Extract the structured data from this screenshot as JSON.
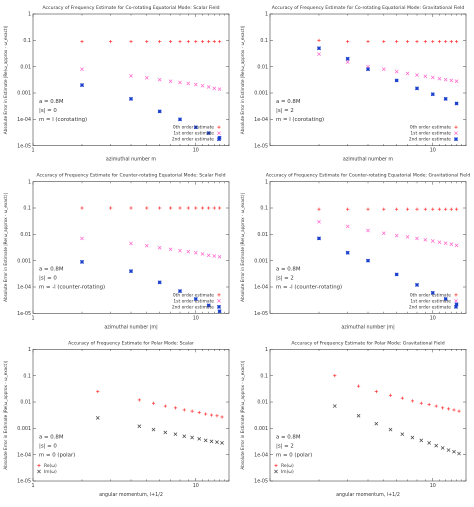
{
  "chart_data": [
    {
      "type": "scatter",
      "title": "Accuracy of Frequency Estimate for Co-rotating Equatorial Mode: Scalar Field",
      "xlabel": "azimuthal number m",
      "ylabel": "Absolute Error in Estimate |Re(ω_approx - ω_exact)|",
      "xscale": "log",
      "yscale": "log",
      "xlim": [
        1,
        16
      ],
      "ylim": [
        1e-05,
        1
      ],
      "xticks": [
        1,
        10
      ],
      "yticks": [
        1e-05,
        0.0001,
        0.001,
        0.01,
        0.1,
        1
      ],
      "params": [
        "a = 0.8M",
        "|s| = 0",
        "m = l (corotating)"
      ],
      "legend_position": "bottom-right",
      "series": [
        {
          "name": "0th order estimate",
          "color": "#ff3333",
          "marker": "plus",
          "x": [
            2,
            3,
            4,
            5,
            6,
            7,
            8,
            9,
            10,
            11,
            12,
            13,
            14
          ],
          "y": [
            0.09,
            0.09,
            0.09,
            0.09,
            0.09,
            0.09,
            0.09,
            0.09,
            0.09,
            0.09,
            0.09,
            0.09,
            0.09
          ]
        },
        {
          "name": "1st order estimate",
          "color": "#ff66cc",
          "marker": "cross",
          "x": [
            2,
            4,
            5,
            6,
            7,
            8,
            9,
            10,
            11,
            12,
            13,
            14
          ],
          "y": [
            0.008,
            0.0045,
            0.0038,
            0.0032,
            0.0028,
            0.0025,
            0.0023,
            0.0021,
            0.0019,
            0.0017,
            0.0015,
            0.0014
          ]
        },
        {
          "name": "2nd order estimate",
          "color": "#1a3fcc",
          "marker": "star",
          "x": [
            2,
            4,
            6,
            8,
            10,
            12,
            14
          ],
          "y": [
            0.002,
            0.0006,
            0.0002,
            0.0001,
            5e-05,
            3e-05,
            2e-05
          ]
        }
      ]
    },
    {
      "type": "scatter",
      "title": "Accuracy of Frequency Estimate for Co-rotating Equatorial Mode: Gravitational Field",
      "xlabel": "azimuthal number m",
      "ylabel": "Absolute Error in Estimate |Re(ω_approx - ω_exact)|",
      "xscale": "log",
      "yscale": "log",
      "xlim": [
        1,
        16
      ],
      "ylim": [
        1e-05,
        1
      ],
      "xticks": [
        10
      ],
      "yticks": [
        1e-05,
        0.0001,
        0.001,
        0.01,
        0.1,
        1
      ],
      "params": [
        "a = 0.8M",
        "|s| = 2",
        "m = l (corotating)"
      ],
      "legend_position": "bottom-right",
      "series": [
        {
          "name": "0th order estimate",
          "color": "#ff3333",
          "marker": "plus",
          "x": [
            2,
            3,
            4,
            5,
            6,
            7,
            8,
            9,
            10,
            11,
            12,
            13,
            14
          ],
          "y": [
            0.1,
            0.09,
            0.09,
            0.09,
            0.09,
            0.09,
            0.09,
            0.09,
            0.09,
            0.09,
            0.09,
            0.09,
            0.09
          ]
        },
        {
          "name": "1st order estimate",
          "color": "#ff66cc",
          "marker": "cross",
          "x": [
            2,
            3,
            4,
            5,
            6,
            7,
            8,
            9,
            10,
            11,
            12,
            13,
            14
          ],
          "y": [
            0.03,
            0.015,
            0.01,
            0.008,
            0.0065,
            0.0055,
            0.0048,
            0.0043,
            0.0039,
            0.0035,
            0.0032,
            0.003,
            0.0028
          ]
        },
        {
          "name": "2nd order estimate",
          "color": "#1a3fcc",
          "marker": "star",
          "x": [
            2,
            3,
            4,
            6,
            8,
            10,
            12,
            14
          ],
          "y": [
            0.05,
            0.02,
            0.008,
            0.003,
            0.0015,
            0.0009,
            0.0006,
            0.0004
          ]
        }
      ]
    },
    {
      "type": "scatter",
      "title": "Accuracy of Frequency Estimate for Counter-rotating Equatorial Mode: Scalar Field",
      "xlabel": "azimuthal number |m|",
      "ylabel": "Absolute Error in Estimate |Re(ω_approx - ω_exact)|",
      "xscale": "log",
      "yscale": "log",
      "xlim": [
        1,
        16
      ],
      "ylim": [
        1e-05,
        1
      ],
      "xticks": [
        1,
        10
      ],
      "yticks": [
        1e-05,
        0.0001,
        0.001,
        0.01,
        0.1,
        1
      ],
      "params": [
        "a = 0.8M",
        "|s| = 0",
        "m = -l (counter-rotating)"
      ],
      "legend_position": "bottom-right",
      "series": [
        {
          "name": "0th order estimate",
          "color": "#ff3333",
          "marker": "plus",
          "x": [
            2,
            3,
            4,
            5,
            6,
            7,
            8,
            9,
            10,
            11,
            12,
            13,
            14
          ],
          "y": [
            0.1,
            0.1,
            0.1,
            0.1,
            0.1,
            0.1,
            0.1,
            0.1,
            0.1,
            0.1,
            0.1,
            0.1,
            0.1
          ]
        },
        {
          "name": "1st order estimate",
          "color": "#ff66cc",
          "marker": "cross",
          "x": [
            2,
            4,
            5,
            6,
            7,
            8,
            9,
            10,
            11,
            12,
            13,
            14
          ],
          "y": [
            0.007,
            0.0045,
            0.0037,
            0.0031,
            0.0027,
            0.0024,
            0.0022,
            0.002,
            0.0018,
            0.0016,
            0.0015,
            0.0014
          ]
        },
        {
          "name": "2nd order estimate",
          "color": "#1a3fcc",
          "marker": "star",
          "x": [
            2,
            4,
            6,
            8,
            10,
            12,
            14
          ],
          "y": [
            0.0009,
            0.0004,
            0.00015,
            7e-05,
            3.5e-05,
            2e-05,
            1.2e-05
          ]
        }
      ]
    },
    {
      "type": "scatter",
      "title": "Accuracy of Frequency Estimate for Counter-rotating Equatorial Mode: Gravitational Field",
      "xlabel": "azimuthal number |m|",
      "ylabel": "Absolute Error in Estimate |Re(ω_approx - ω_exact)|",
      "xscale": "log",
      "yscale": "log",
      "xlim": [
        1,
        16
      ],
      "ylim": [
        1e-05,
        1
      ],
      "xticks": [
        10
      ],
      "yticks": [
        1e-05,
        0.0001,
        0.001,
        0.01,
        0.1,
        1
      ],
      "params": [
        "a = 0.8M",
        "|s| = 2",
        "m = -l (counter-rotating)"
      ],
      "legend_position": "bottom-right",
      "series": [
        {
          "name": "0th order estimate",
          "color": "#ff3333",
          "marker": "plus",
          "x": [
            2,
            3,
            4,
            5,
            6,
            7,
            8,
            9,
            10,
            11,
            12,
            13,
            14
          ],
          "y": [
            0.09,
            0.09,
            0.09,
            0.09,
            0.09,
            0.09,
            0.09,
            0.09,
            0.09,
            0.09,
            0.09,
            0.09,
            0.09
          ]
        },
        {
          "name": "1st order estimate",
          "color": "#ff66cc",
          "marker": "cross",
          "x": [
            2,
            3,
            4,
            5,
            6,
            7,
            8,
            9,
            10,
            11,
            12,
            13,
            14
          ],
          "y": [
            0.03,
            0.02,
            0.014,
            0.011,
            0.009,
            0.008,
            0.007,
            0.0062,
            0.0056,
            0.005,
            0.0046,
            0.0042,
            0.0038
          ]
        },
        {
          "name": "2nd order estimate",
          "color": "#1a3fcc",
          "marker": "star",
          "x": [
            2,
            3,
            4,
            6,
            8,
            10,
            12,
            14
          ],
          "y": [
            0.007,
            0.002,
            0.001,
            0.0003,
            0.00012,
            6e-05,
            3.5e-05,
            2.2e-05
          ]
        }
      ]
    },
    {
      "type": "scatter",
      "title": "Accuracy of Frequency Estimate for Polar Mode: Scalar",
      "xlabel": "angular momentum, l+1/2",
      "ylabel": "Absolute Error in Estimate |Re(ω_approx - ω_exact)|",
      "xscale": "log",
      "yscale": "log",
      "xlim": [
        1,
        16
      ],
      "ylim": [
        1e-05,
        1
      ],
      "xticks": [
        1,
        10
      ],
      "yticks": [
        1e-05,
        0.0001,
        0.001,
        0.01,
        0.1,
        1
      ],
      "params": [
        "a = 0.8M",
        "|s| = 0",
        "m = 0 (polar)"
      ],
      "legend_position": "bottom-left",
      "series": [
        {
          "name": "Re(ω)",
          "color": "#ff3333",
          "marker": "plus",
          "x": [
            2.5,
            4.5,
            5.5,
            6.5,
            7.5,
            8.5,
            9.5,
            10.5,
            11.5,
            12.5,
            13.5,
            14.5
          ],
          "y": [
            0.025,
            0.012,
            0.009,
            0.007,
            0.006,
            0.005,
            0.0045,
            0.004,
            0.0035,
            0.0032,
            0.003,
            0.0027
          ]
        },
        {
          "name": "Im(ω)",
          "color": "#444444",
          "marker": "cross",
          "x": [
            2.5,
            4.5,
            5.5,
            6.5,
            7.5,
            8.5,
            9.5,
            10.5,
            11.5,
            12.5,
            13.5,
            14.5
          ],
          "y": [
            0.0025,
            0.0012,
            0.0009,
            0.0007,
            0.0006,
            0.0005,
            0.00045,
            0.0004,
            0.00035,
            0.00032,
            0.0003,
            0.00028
          ]
        }
      ]
    },
    {
      "type": "scatter",
      "title": "Accuracy of Frequency Estimate for Polar Mode: Gravitational Field",
      "xlabel": "angular momentum, l+1/2",
      "ylabel": "Absolute Error in Estimate |Re(ω_approx - ω_exact)|",
      "xscale": "log",
      "yscale": "log",
      "xlim": [
        1,
        16
      ],
      "ylim": [
        1e-05,
        1
      ],
      "xticks": [
        10
      ],
      "yticks": [
        1e-05,
        0.0001,
        0.001,
        0.01,
        0.1,
        1
      ],
      "params": [
        "a = 0.8M",
        "|s| = 2",
        "m = 0 (polar)"
      ],
      "legend_position": "bottom-left",
      "series": [
        {
          "name": "Re(ω)",
          "color": "#ff3333",
          "marker": "plus",
          "x": [
            2.5,
            3.5,
            4.5,
            5.5,
            6.5,
            7.5,
            8.5,
            9.5,
            10.5,
            11.5,
            12.5,
            13.5,
            14.5
          ],
          "y": [
            0.1,
            0.04,
            0.025,
            0.018,
            0.014,
            0.011,
            0.009,
            0.008,
            0.007,
            0.006,
            0.0055,
            0.005,
            0.0045
          ]
        },
        {
          "name": "Im(ω)",
          "color": "#444444",
          "marker": "cross",
          "x": [
            2.5,
            3.5,
            4.5,
            5.5,
            6.5,
            7.5,
            8.5,
            9.5,
            10.5,
            11.5,
            12.5,
            13.5,
            14.5
          ],
          "y": [
            0.007,
            0.003,
            0.0015,
            0.0009,
            0.0006,
            0.00045,
            0.00035,
            0.00028,
            0.00022,
            0.00018,
            0.00015,
            0.00013,
            0.00011
          ]
        }
      ]
    }
  ]
}
